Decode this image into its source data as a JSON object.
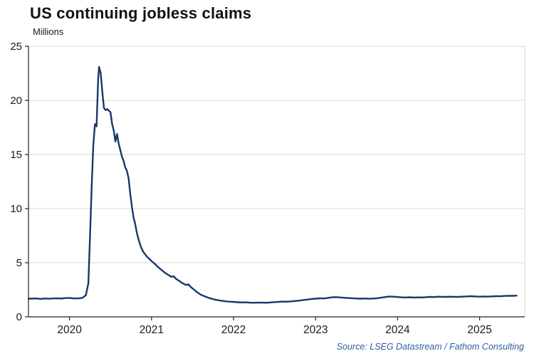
{
  "title": "US continuing jobless claims",
  "subtitle": "Millions",
  "source": "Source: LSEG Datastream / Fathom Consulting",
  "colors": {
    "line": "#16386b",
    "grid": "#d9d9d9",
    "axis": "#222222",
    "title": "#111111",
    "source": "#2d5f9e"
  },
  "chart_data": {
    "type": "line",
    "title": "US continuing jobless claims",
    "ylabel": "Millions",
    "xlabel": "",
    "xlim": [
      2019.5,
      2025.55
    ],
    "ylim": [
      0,
      25
    ],
    "yticks": [
      0,
      5,
      10,
      15,
      20,
      25
    ],
    "xticks": [
      2020,
      2021,
      2022,
      2023,
      2024,
      2025
    ],
    "grid": "horizontal",
    "legend": "none",
    "series": [
      {
        "name": "US continuing jobless claims (millions)",
        "color": "#16386b",
        "points": [
          [
            2019.5,
            1.68
          ],
          [
            2019.6,
            1.7
          ],
          [
            2019.65,
            1.66
          ],
          [
            2019.7,
            1.7
          ],
          [
            2019.75,
            1.67
          ],
          [
            2019.8,
            1.7
          ],
          [
            2019.85,
            1.72
          ],
          [
            2019.9,
            1.69
          ],
          [
            2019.95,
            1.73
          ],
          [
            2020.0,
            1.75
          ],
          [
            2020.04,
            1.71
          ],
          [
            2020.08,
            1.7
          ],
          [
            2020.12,
            1.72
          ],
          [
            2020.16,
            1.76
          ],
          [
            2020.2,
            2.0
          ],
          [
            2020.23,
            3.1
          ],
          [
            2020.25,
            7.4
          ],
          [
            2020.27,
            11.9
          ],
          [
            2020.29,
            15.8
          ],
          [
            2020.31,
            17.8
          ],
          [
            2020.33,
            17.6
          ],
          [
            2020.35,
            22.0
          ],
          [
            2020.36,
            23.1
          ],
          [
            2020.38,
            22.5
          ],
          [
            2020.4,
            20.8
          ],
          [
            2020.42,
            19.3
          ],
          [
            2020.44,
            19.1
          ],
          [
            2020.46,
            19.2
          ],
          [
            2020.48,
            19.05
          ],
          [
            2020.5,
            18.9
          ],
          [
            2020.52,
            17.8
          ],
          [
            2020.54,
            17.2
          ],
          [
            2020.56,
            16.2
          ],
          [
            2020.58,
            16.9
          ],
          [
            2020.6,
            16.0
          ],
          [
            2020.62,
            15.4
          ],
          [
            2020.64,
            14.8
          ],
          [
            2020.66,
            14.4
          ],
          [
            2020.68,
            13.8
          ],
          [
            2020.7,
            13.5
          ],
          [
            2020.72,
            12.8
          ],
          [
            2020.74,
            11.4
          ],
          [
            2020.76,
            10.2
          ],
          [
            2020.78,
            9.2
          ],
          [
            2020.8,
            8.6
          ],
          [
            2020.82,
            7.8
          ],
          [
            2020.84,
            7.2
          ],
          [
            2020.86,
            6.7
          ],
          [
            2020.88,
            6.3
          ],
          [
            2020.9,
            6.0
          ],
          [
            2020.92,
            5.8
          ],
          [
            2020.94,
            5.6
          ],
          [
            2020.96,
            5.45
          ],
          [
            2020.98,
            5.3
          ],
          [
            2021.0,
            5.15
          ],
          [
            2021.04,
            4.9
          ],
          [
            2021.08,
            4.6
          ],
          [
            2021.12,
            4.35
          ],
          [
            2021.16,
            4.1
          ],
          [
            2021.2,
            3.9
          ],
          [
            2021.24,
            3.7
          ],
          [
            2021.27,
            3.75
          ],
          [
            2021.3,
            3.5
          ],
          [
            2021.34,
            3.3
          ],
          [
            2021.38,
            3.1
          ],
          [
            2021.42,
            2.95
          ],
          [
            2021.45,
            3.0
          ],
          [
            2021.48,
            2.75
          ],
          [
            2021.52,
            2.5
          ],
          [
            2021.56,
            2.25
          ],
          [
            2021.6,
            2.05
          ],
          [
            2021.64,
            1.92
          ],
          [
            2021.68,
            1.8
          ],
          [
            2021.72,
            1.7
          ],
          [
            2021.76,
            1.62
          ],
          [
            2021.8,
            1.55
          ],
          [
            2021.84,
            1.5
          ],
          [
            2021.88,
            1.46
          ],
          [
            2021.92,
            1.42
          ],
          [
            2021.96,
            1.4
          ],
          [
            2022.0,
            1.38
          ],
          [
            2022.05,
            1.35
          ],
          [
            2022.1,
            1.33
          ],
          [
            2022.15,
            1.34
          ],
          [
            2022.2,
            1.31
          ],
          [
            2022.25,
            1.3
          ],
          [
            2022.3,
            1.32
          ],
          [
            2022.35,
            1.31
          ],
          [
            2022.4,
            1.3
          ],
          [
            2022.45,
            1.33
          ],
          [
            2022.5,
            1.36
          ],
          [
            2022.55,
            1.38
          ],
          [
            2022.6,
            1.41
          ],
          [
            2022.65,
            1.4
          ],
          [
            2022.7,
            1.43
          ],
          [
            2022.75,
            1.46
          ],
          [
            2022.8,
            1.5
          ],
          [
            2022.85,
            1.55
          ],
          [
            2022.9,
            1.6
          ],
          [
            2022.95,
            1.65
          ],
          [
            2023.0,
            1.68
          ],
          [
            2023.05,
            1.72
          ],
          [
            2023.1,
            1.7
          ],
          [
            2023.15,
            1.75
          ],
          [
            2023.2,
            1.8
          ],
          [
            2023.25,
            1.82
          ],
          [
            2023.3,
            1.79
          ],
          [
            2023.35,
            1.76
          ],
          [
            2023.4,
            1.74
          ],
          [
            2023.45,
            1.72
          ],
          [
            2023.5,
            1.7
          ],
          [
            2023.55,
            1.68
          ],
          [
            2023.6,
            1.7
          ],
          [
            2023.65,
            1.67
          ],
          [
            2023.7,
            1.69
          ],
          [
            2023.75,
            1.72
          ],
          [
            2023.8,
            1.77
          ],
          [
            2023.85,
            1.83
          ],
          [
            2023.9,
            1.88
          ],
          [
            2023.95,
            1.86
          ],
          [
            2024.0,
            1.83
          ],
          [
            2024.05,
            1.8
          ],
          [
            2024.1,
            1.79
          ],
          [
            2024.15,
            1.81
          ],
          [
            2024.2,
            1.78
          ],
          [
            2024.25,
            1.8
          ],
          [
            2024.3,
            1.79
          ],
          [
            2024.35,
            1.82
          ],
          [
            2024.4,
            1.84
          ],
          [
            2024.45,
            1.83
          ],
          [
            2024.5,
            1.86
          ],
          [
            2024.55,
            1.85
          ],
          [
            2024.6,
            1.84
          ],
          [
            2024.65,
            1.86
          ],
          [
            2024.7,
            1.84
          ],
          [
            2024.75,
            1.85
          ],
          [
            2024.8,
            1.87
          ],
          [
            2024.85,
            1.89
          ],
          [
            2024.9,
            1.91
          ],
          [
            2024.95,
            1.88
          ],
          [
            2025.0,
            1.86
          ],
          [
            2025.05,
            1.88
          ],
          [
            2025.1,
            1.87
          ],
          [
            2025.15,
            1.89
          ],
          [
            2025.2,
            1.91
          ],
          [
            2025.25,
            1.9
          ],
          [
            2025.3,
            1.93
          ],
          [
            2025.35,
            1.95
          ],
          [
            2025.4,
            1.94
          ],
          [
            2025.45,
            1.96
          ]
        ]
      }
    ]
  }
}
